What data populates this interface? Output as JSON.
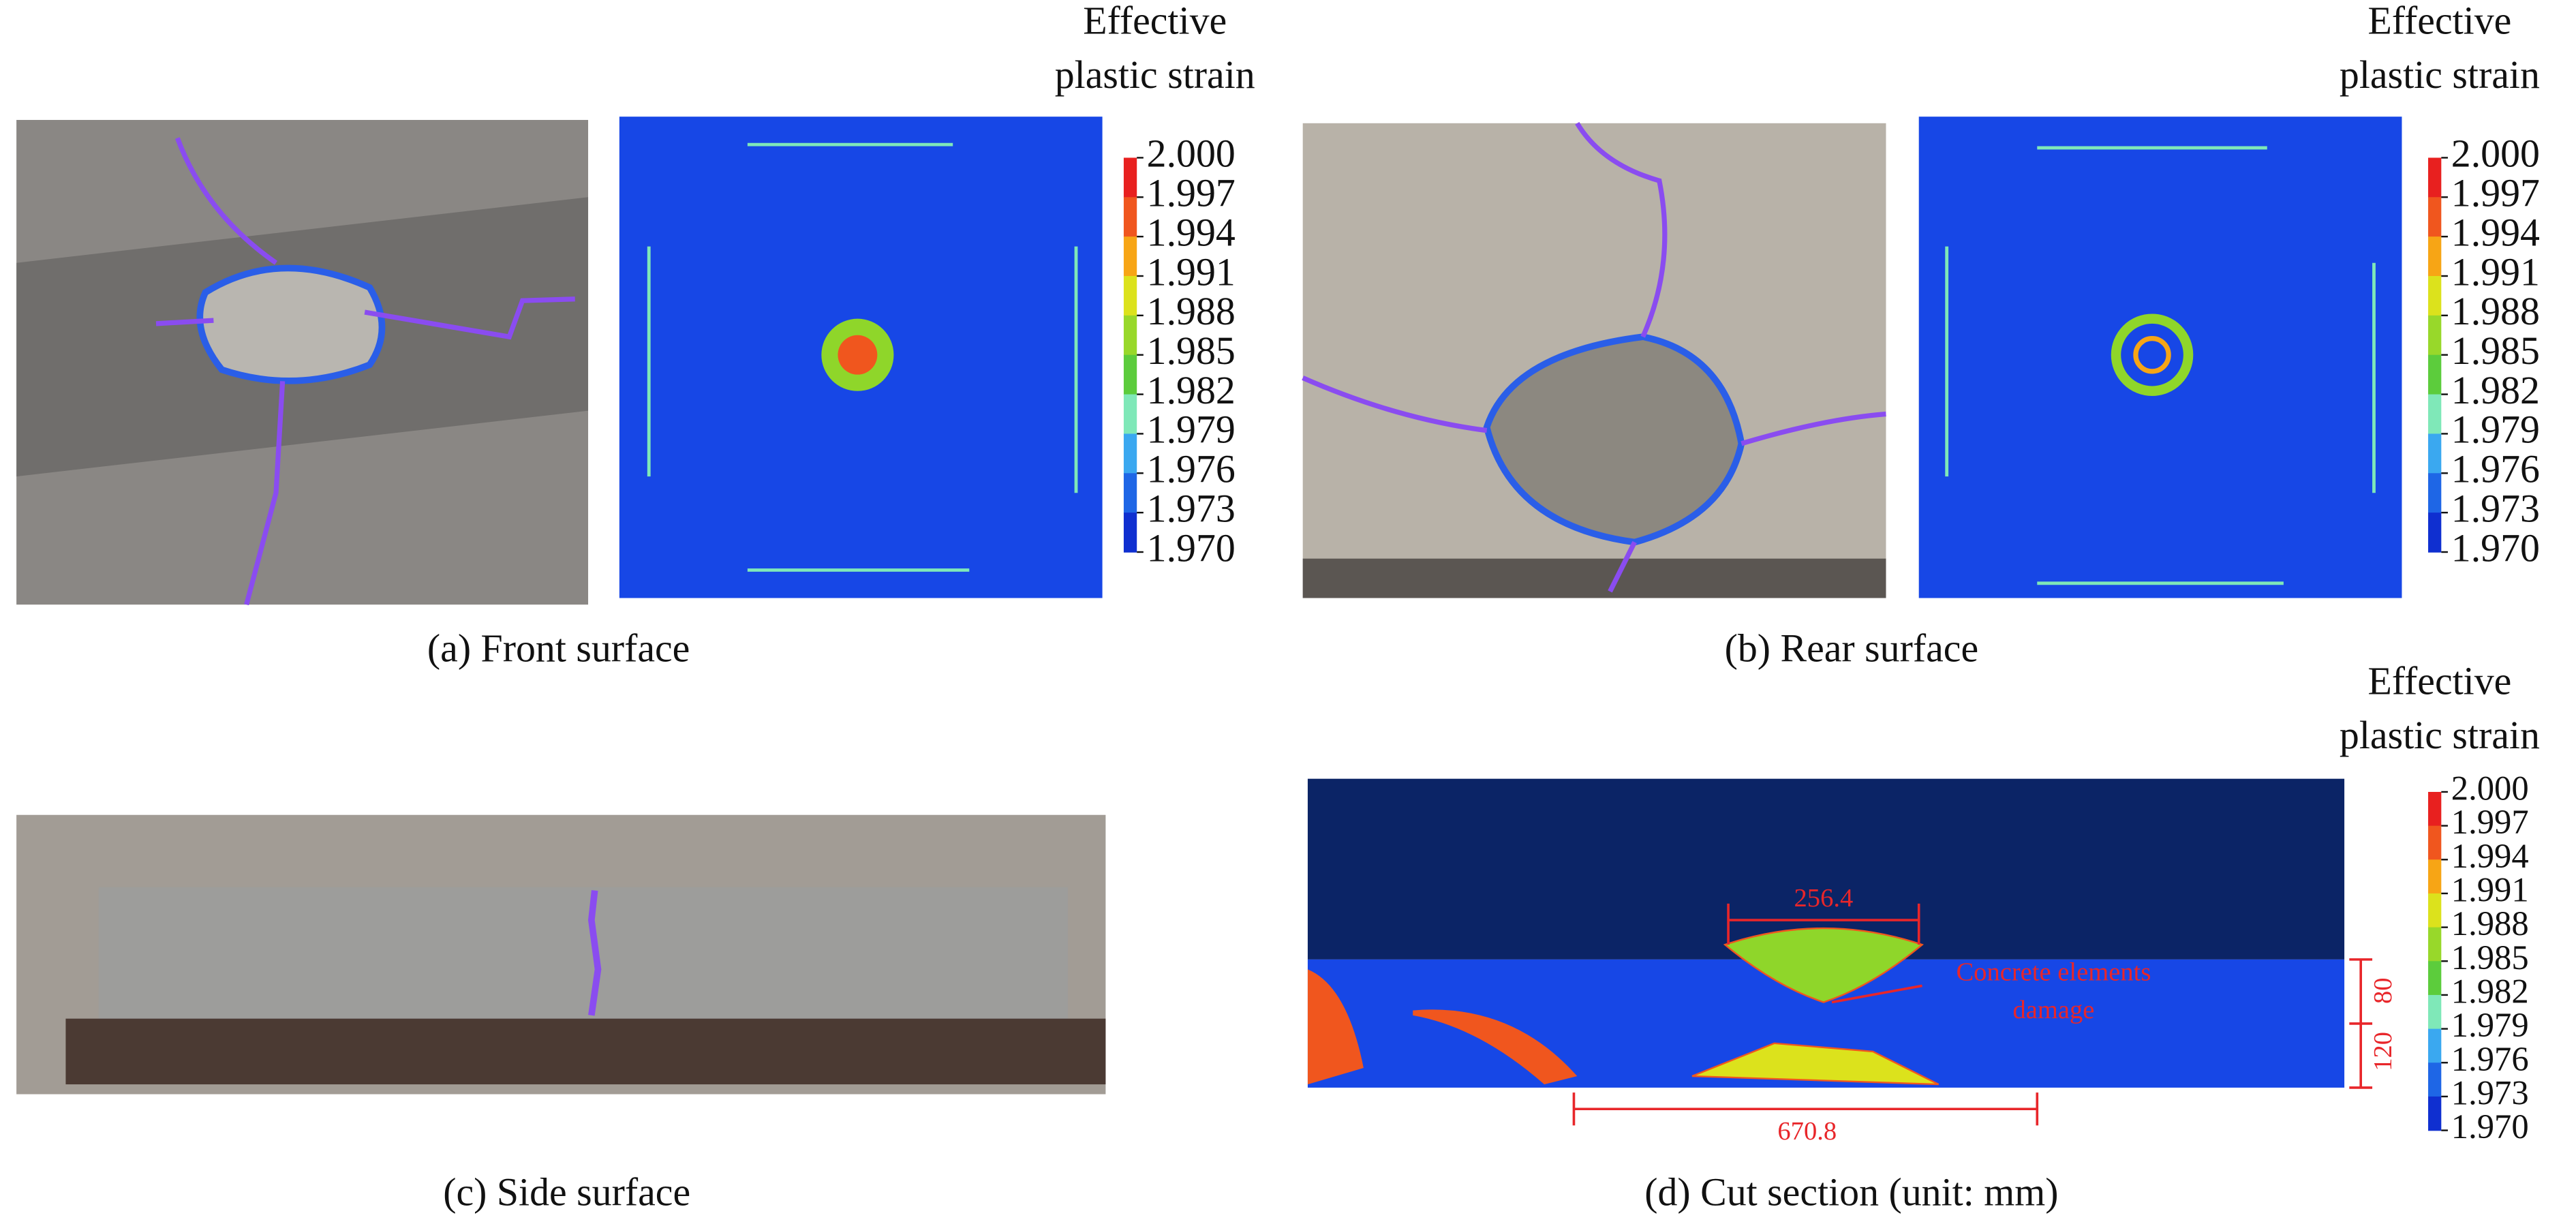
{
  "panels": [
    {
      "caption": "(a) Front surface"
    },
    {
      "caption": "(b) Rear surface"
    },
    {
      "caption": "(c) Side surface"
    },
    {
      "caption": "(d) Cut section (unit: mm)"
    }
  ],
  "colorbar": {
    "title": [
      "Effective",
      "plastic strain"
    ],
    "ticks": [
      "2.000",
      "1.997",
      "1.994",
      "1.991",
      "1.988",
      "1.985",
      "1.982",
      "1.979",
      "1.976",
      "1.973",
      "1.970"
    ],
    "colors": [
      "#e8201f",
      "#f0561e",
      "#f7a515",
      "#dce21c",
      "#98d82a",
      "#5ccc3c",
      "#7fe8b8",
      "#3aa8f0",
      "#1e66e6",
      "#0f2fd0"
    ]
  },
  "annotations": {
    "width_top": "256.4",
    "damage": [
      "Concrete elements",
      "damage"
    ],
    "width_bottom": "670.8",
    "depth_upper": "80",
    "depth_lower": "120"
  }
}
